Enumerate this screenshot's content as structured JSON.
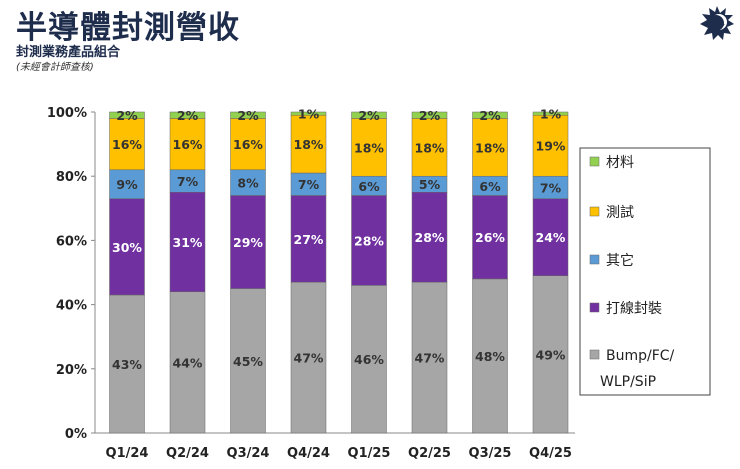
{
  "header": {
    "title": "半導體封測營收",
    "subtitle": "封測業務產品組合",
    "note": "(未經會計師查核)"
  },
  "logo": {
    "icon": "sun-face-logo",
    "color": "#1f2d4d"
  },
  "chart_data": {
    "type": "bar",
    "stacked": true,
    "categories": [
      "Q1/24",
      "Q2/24",
      "Q3/24",
      "Q4/24",
      "Q1/25",
      "Q2/25",
      "Q3/25",
      "Q4/25"
    ],
    "yticks": [
      "0%",
      "20%",
      "40%",
      "60%",
      "80%",
      "100%"
    ],
    "ylim": [
      0,
      100
    ],
    "legend_position": "right",
    "series": [
      {
        "name": "Bump/FC/ WLP/SiP",
        "color": "#a6a6a6",
        "label_color": "#333333",
        "values": [
          43,
          44,
          45,
          47,
          46,
          47,
          48,
          49
        ]
      },
      {
        "name": "打線封裝",
        "color": "#7030a0",
        "label_color": "#ffffff",
        "values": [
          30,
          31,
          29,
          27,
          28,
          28,
          26,
          24
        ]
      },
      {
        "name": "其它",
        "color": "#5b9bd5",
        "label_color": "#333333",
        "values": [
          9,
          7,
          8,
          7,
          6,
          5,
          6,
          7
        ]
      },
      {
        "name": "測試",
        "color": "#ffc000",
        "label_color": "#333333",
        "values": [
          16,
          16,
          16,
          18,
          18,
          18,
          18,
          19
        ]
      },
      {
        "name": "材料",
        "color": "#92d050",
        "label_color": "#333333",
        "values": [
          2,
          2,
          2,
          1,
          2,
          2,
          2,
          1
        ]
      }
    ]
  }
}
